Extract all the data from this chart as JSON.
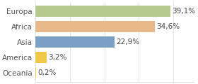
{
  "categories": [
    "Europa",
    "Africa",
    "Asia",
    "America",
    "Oceania"
  ],
  "values": [
    39.1,
    34.6,
    22.9,
    3.2,
    0.2
  ],
  "labels": [
    "39,1%",
    "34,6%",
    "22,9%",
    "3,2%",
    "0,2%"
  ],
  "bar_colors": [
    "#b5c98e",
    "#e8b98a",
    "#7b9fc7",
    "#f2c84b",
    "#f2c84b"
  ],
  "background_color": "#ffffff",
  "xlim": [
    0,
    46
  ],
  "label_fontsize": 7.5,
  "tick_fontsize": 7.5,
  "bar_height": 0.72
}
